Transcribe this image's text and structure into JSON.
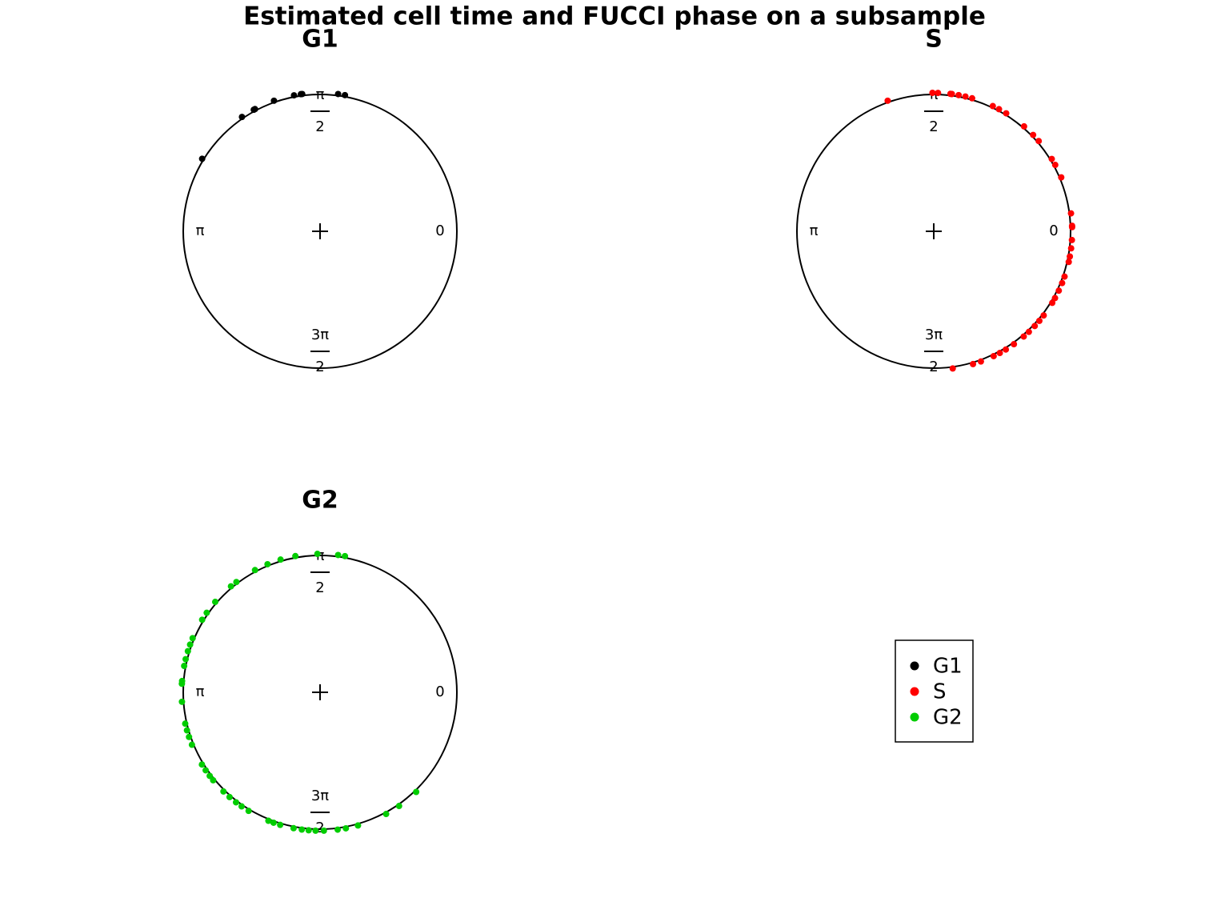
{
  "title": "Estimated cell time and FUCCI phase on a subsample",
  "chart_data": [
    {
      "type": "polar-scatter",
      "title": "G1",
      "ticks": [
        0,
        {
          "value": 1.5708,
          "label": [
            "π",
            "2"
          ]
        },
        {
          "value": 3.1416,
          "label": "π"
        },
        {
          "value": 4.7124,
          "label": [
            "3π",
            "2"
          ]
        }
      ],
      "series": [
        {
          "name": "G1",
          "color": "#000000",
          "values": [
            1.39,
            1.44,
            1.7,
            1.71,
            1.76,
            1.91,
            2.06,
            2.07,
            2.17,
            2.59
          ]
        }
      ]
    },
    {
      "type": "polar-scatter",
      "title": "S",
      "ticks": [
        0,
        {
          "value": 1.5708,
          "label": [
            "π",
            "2"
          ]
        },
        {
          "value": 3.1416,
          "label": "π"
        },
        {
          "value": 4.7124,
          "label": [
            "3π",
            "2"
          ]
        }
      ],
      "series": [
        {
          "name": "S",
          "color": "#ff0000",
          "values": [
            1.91,
            1.58,
            1.54,
            1.45,
            1.44,
            1.44,
            1.39,
            1.34,
            1.29,
            1.13,
            1.08,
            1.02,
            0.86,
            0.77,
            0.71,
            0.55,
            0.5,
            0.4,
            0.13,
            0.03,
            0.04,
            6.22,
            6.16,
            6.1,
            6.06,
            5.95,
            5.9,
            5.84,
            5.78,
            5.74,
            5.63,
            5.58,
            5.53,
            5.47,
            5.42,
            5.33,
            5.26,
            5.21,
            5.16,
            5.06,
            5.0,
            4.85
          ]
        }
      ]
    },
    {
      "type": "polar-scatter",
      "title": "G2",
      "ticks": [
        0,
        {
          "value": 1.5708,
          "label": [
            "π",
            "2"
          ]
        },
        {
          "value": 3.1416,
          "label": "π"
        },
        {
          "value": 4.7124,
          "label": [
            "3π",
            "2"
          ]
        }
      ],
      "series": [
        {
          "name": "G2",
          "color": "#00cd00",
          "values": [
            1.59,
            1.44,
            1.39,
            1.75,
            1.86,
            1.96,
            2.06,
            2.22,
            2.27,
            2.43,
            2.53,
            2.59,
            2.74,
            2.79,
            2.84,
            2.9,
            2.95,
            3.06,
            3.08,
            3.21,
            3.37,
            3.42,
            3.47,
            3.53,
            3.69,
            3.74,
            3.79,
            3.83,
            3.94,
            4.0,
            4.06,
            4.11,
            4.17,
            4.33,
            4.37,
            4.42,
            4.52,
            4.58,
            4.63,
            4.68,
            4.74,
            4.84,
            4.9,
            4.99,
            5.21,
            5.32,
            5.48
          ]
        }
      ]
    }
  ]
}
